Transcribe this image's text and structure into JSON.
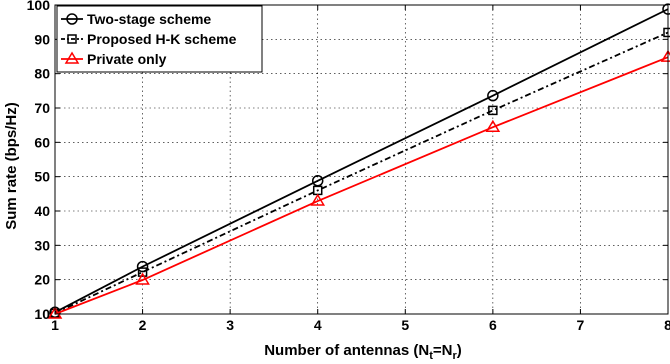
{
  "chart_data": {
    "type": "line",
    "xlabel": "Number of antennas (N",
    "xlabel_sub_t": "t",
    "xlabel_eq": "=N",
    "xlabel_sub_r": "r",
    "xlabel_close": ")",
    "ylabel": "Sum rate (bps/Hz)",
    "xlim": [
      1,
      8
    ],
    "ylim": [
      10,
      100
    ],
    "xticks": [
      1,
      2,
      3,
      4,
      5,
      6,
      7,
      8
    ],
    "yticks": [
      10,
      20,
      30,
      40,
      50,
      60,
      70,
      80,
      90,
      100
    ],
    "grid": true,
    "legend_position": "top-left",
    "series": [
      {
        "name": "Two-stage scheme",
        "color": "#000000",
        "line": "solid",
        "marker": "circle",
        "x": [
          1,
          2,
          4,
          6,
          8
        ],
        "y": [
          10.5,
          23.8,
          48.8,
          73.6,
          98.8
        ]
      },
      {
        "name": "Proposed H-K scheme",
        "color": "#000000",
        "line": "dashdot",
        "marker": "square",
        "x": [
          1,
          2,
          4,
          6,
          8
        ],
        "y": [
          10.2,
          22.2,
          46.0,
          69.3,
          92.0
        ]
      },
      {
        "name": "Private only",
        "color": "#ff0000",
        "line": "solid",
        "marker": "triangle",
        "x": [
          1,
          2,
          4,
          6,
          8
        ],
        "y": [
          10.0,
          19.9,
          42.9,
          64.4,
          84.8
        ]
      }
    ]
  }
}
